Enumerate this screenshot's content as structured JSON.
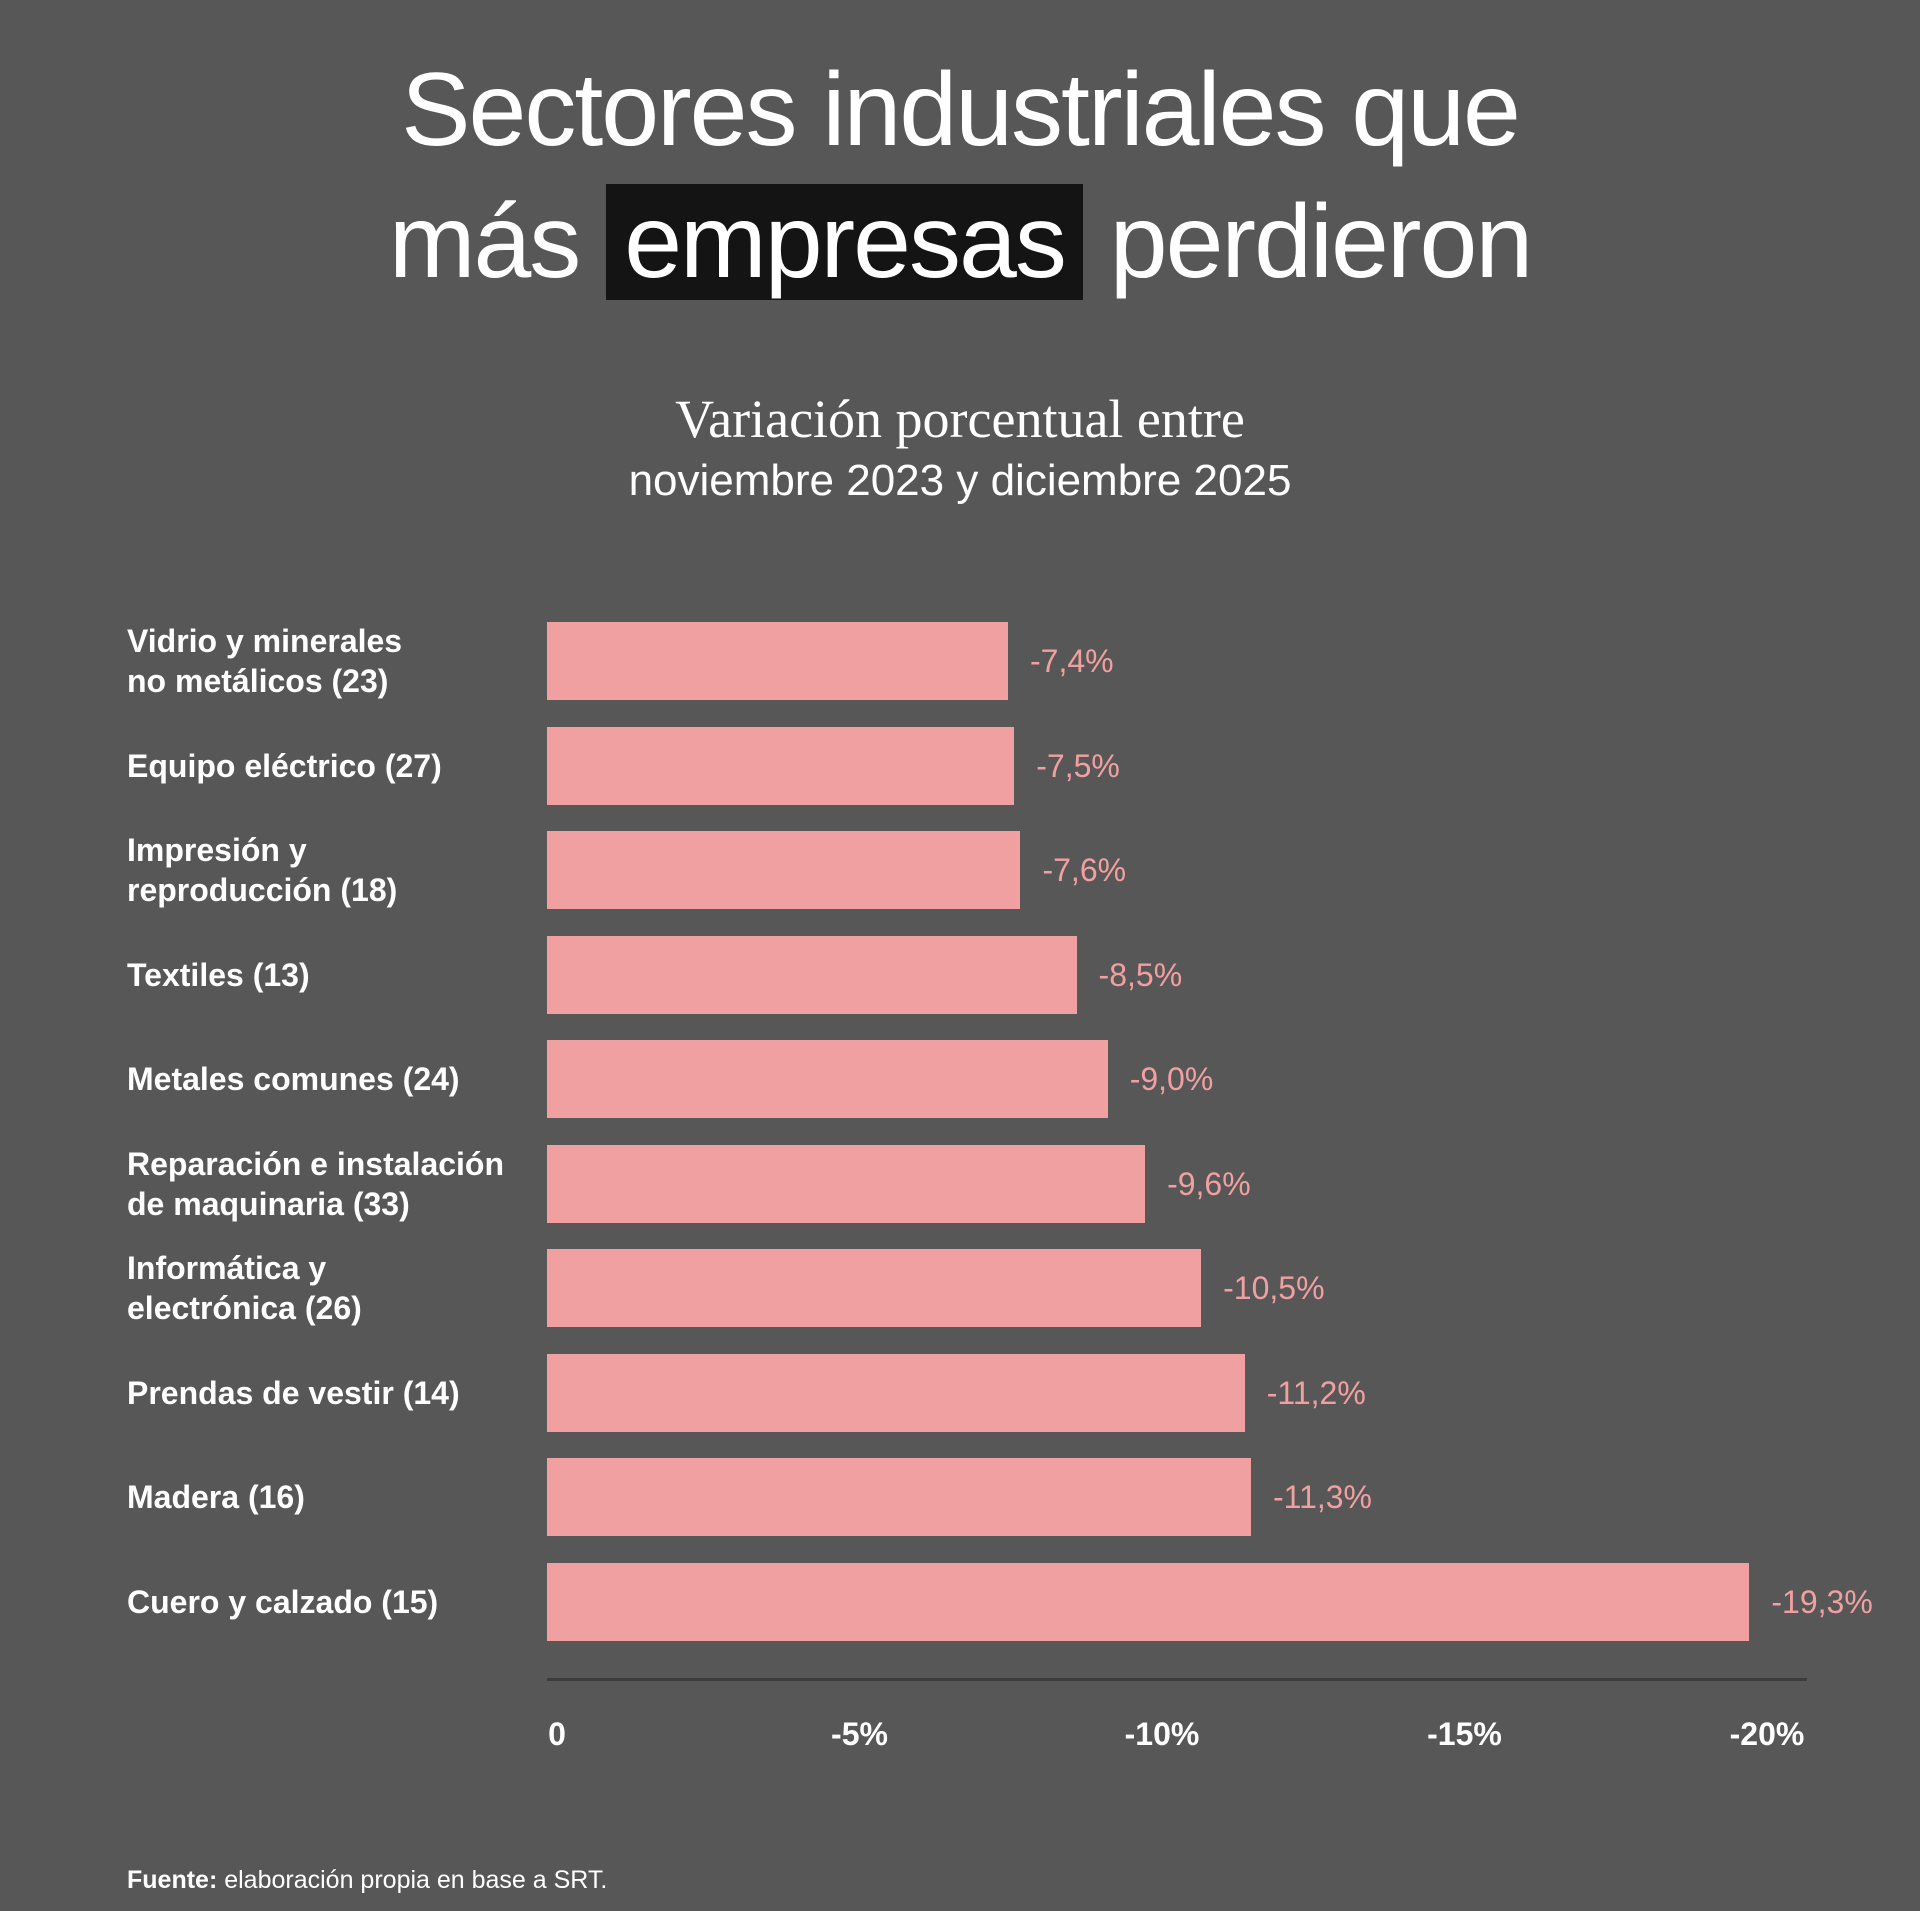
{
  "chart_data": {
    "type": "bar",
    "orientation": "horizontal",
    "title_parts": [
      "Sectores industriales que",
      "más",
      "empresas",
      "perdieron"
    ],
    "subtitle_line1": "Variación porcentual entre",
    "subtitle_line2": "noviembre 2023 y diciembre 2025",
    "categories": [
      "Vidrio y minerales\nno metálicos (23)",
      "Equipo eléctrico (27)",
      "Impresión y\nreproducción (18)",
      "Textiles (13)",
      "Metales comunes (24)",
      "Reparación e instalación\nde maquinaria (33)",
      "Informática y\nelectrónica (26)",
      "Prendas de vestir (14)",
      "Madera (16)",
      "Cuero y calzado (15)"
    ],
    "values": [
      -7.4,
      -7.5,
      -7.6,
      -8.5,
      -9.0,
      -9.6,
      -10.5,
      -11.2,
      -11.3,
      -19.3
    ],
    "value_labels": [
      "-7,4%",
      "-7,5%",
      "-7,6%",
      "-8,5%",
      "-9,0%",
      "-9,6%",
      "-10,5%",
      "-11,2%",
      "-11,3%",
      "-19,3%"
    ],
    "xlim": [
      0,
      -20
    ],
    "x_ticks": [
      "0",
      "-5%",
      "-10%",
      "-15%",
      "-20%"
    ],
    "grid": false,
    "legend": "none",
    "colors": {
      "bar": "#f0a0a0",
      "background": "#575757",
      "highlight": "#141414",
      "axis": "#3c3c3c"
    }
  },
  "footer": {
    "label": "Fuente:",
    "text": " elaboración propia en base a SRT."
  }
}
